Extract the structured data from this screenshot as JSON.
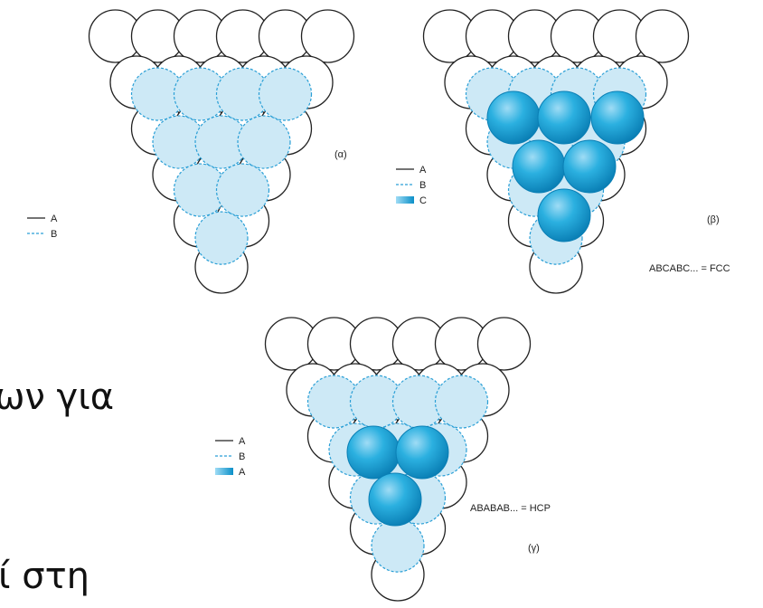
{
  "panels": [
    {
      "label": "(α)",
      "legend": [
        "A",
        "B"
      ]
    },
    {
      "label": "(β)",
      "legend": [
        "A",
        "B",
        "C"
      ],
      "caption": "ABCABC... = FCC"
    },
    {
      "label": "(γ)",
      "legend": [
        "A",
        "B",
        "A"
      ],
      "caption": "ABABAB... = HCP"
    }
  ],
  "slide_text": [
    "ων για",
    "ί στη"
  ]
}
